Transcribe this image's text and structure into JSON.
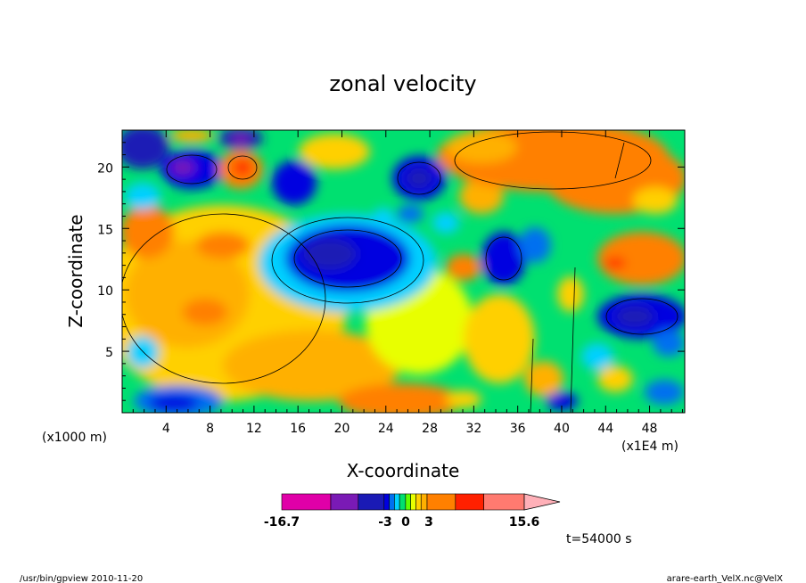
{
  "chart_data": {
    "type": "heatmap",
    "title": "zonal velocity",
    "xlabel": "X-coordinate",
    "ylabel": "Z-coordinate",
    "x_unit_left": "(x1000 m)",
    "x_unit_right": "(x1E4 m)",
    "x_ticks": [
      "4",
      "8",
      "12",
      "16",
      "20",
      "24",
      "28",
      "32",
      "36",
      "40",
      "44",
      "48"
    ],
    "y_ticks": [
      "5",
      "10",
      "15",
      "20"
    ],
    "xlim": [
      0,
      51.2
    ],
    "ylim": [
      0,
      23
    ],
    "colorbar": {
      "labels": [
        "-16.7",
        "-3",
        "0",
        "3",
        "15.6"
      ],
      "colors": [
        "#e000a8",
        "#7a1ab5",
        "#1a1ab5",
        "#0000e0",
        "#0070f0",
        "#00d0ff",
        "#00e070",
        "#60ff00",
        "#e8ff00",
        "#ffd000",
        "#ffb000",
        "#ff8000",
        "#ff2000",
        "#ff7a70"
      ]
    },
    "time_label": "t=54000 s",
    "footer_left": "/usr/bin/gpview    2010-11-20",
    "footer_right": "arare-earth_VelX.nc@VelX",
    "field_description": "zonal velocity contours: negative (blue) cores aloft at x~20-28, positive (orange) regions left and upper-right"
  }
}
